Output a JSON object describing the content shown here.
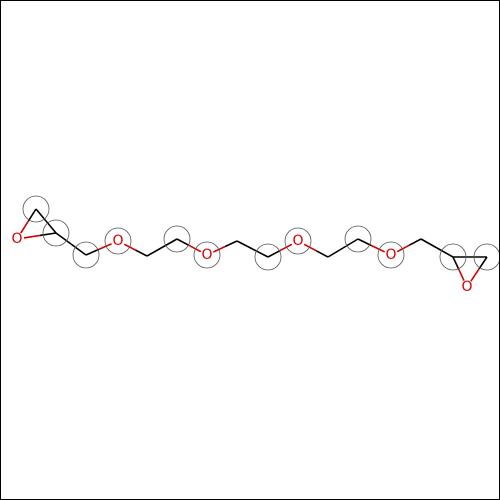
{
  "colors": {
    "bond": "#000000",
    "oxygen": "#d40000",
    "highlight": "#555555",
    "background": "#ffffff"
  },
  "molecule": {
    "atom_labels": {
      "o_epox_left": "O",
      "o1": "O",
      "o2": "O",
      "o3": "O",
      "o4": "O",
      "o_epox_right": "O"
    }
  }
}
